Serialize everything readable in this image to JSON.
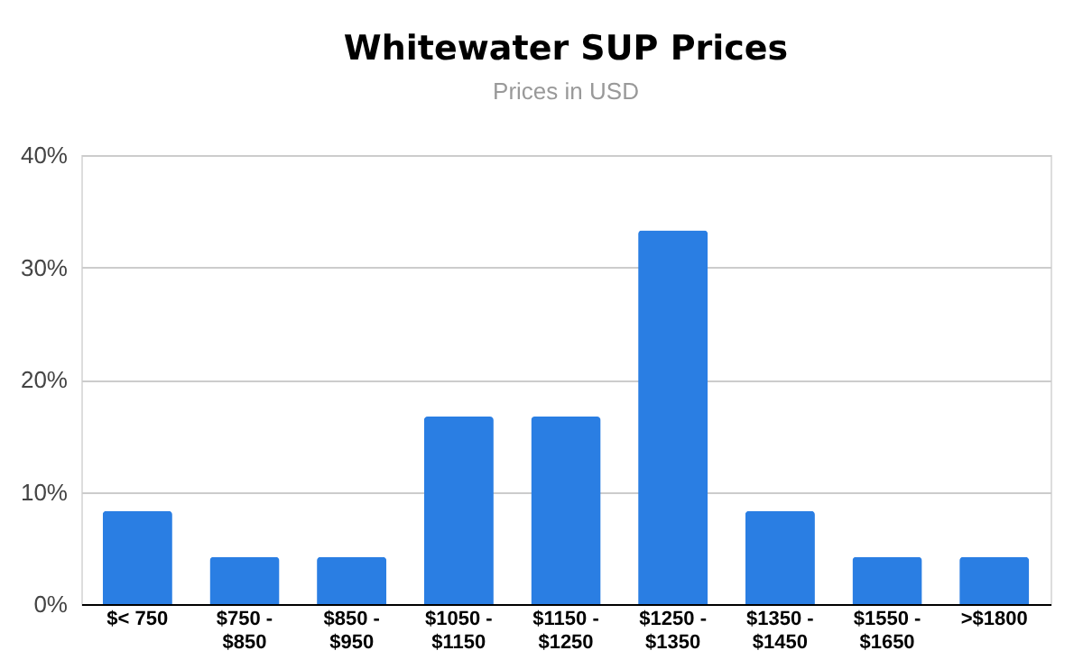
{
  "chart_data": {
    "type": "bar",
    "title": "Whitewater SUP Prices",
    "subtitle": "Prices in USD",
    "categories": [
      "$< 750",
      "$750 - $850",
      "$850 - $950",
      "$1050 - $1150",
      "$1150 - $1250",
      "$1250 - $1350",
      "$1350 - $1450",
      "$1550 - $1650",
      ">$1800"
    ],
    "values": [
      8.3,
      4.2,
      4.2,
      16.7,
      16.7,
      33.3,
      8.3,
      4.2,
      4.2
    ],
    "color": "#2a7ee3",
    "ylim": [
      0,
      40
    ],
    "yticks": [
      {
        "value": 0,
        "label": "0%"
      },
      {
        "value": 10,
        "label": "10%"
      },
      {
        "value": 20,
        "label": "20%"
      },
      {
        "value": 30,
        "label": "30%"
      },
      {
        "value": 40,
        "label": "40%"
      }
    ],
    "grid": "y"
  }
}
